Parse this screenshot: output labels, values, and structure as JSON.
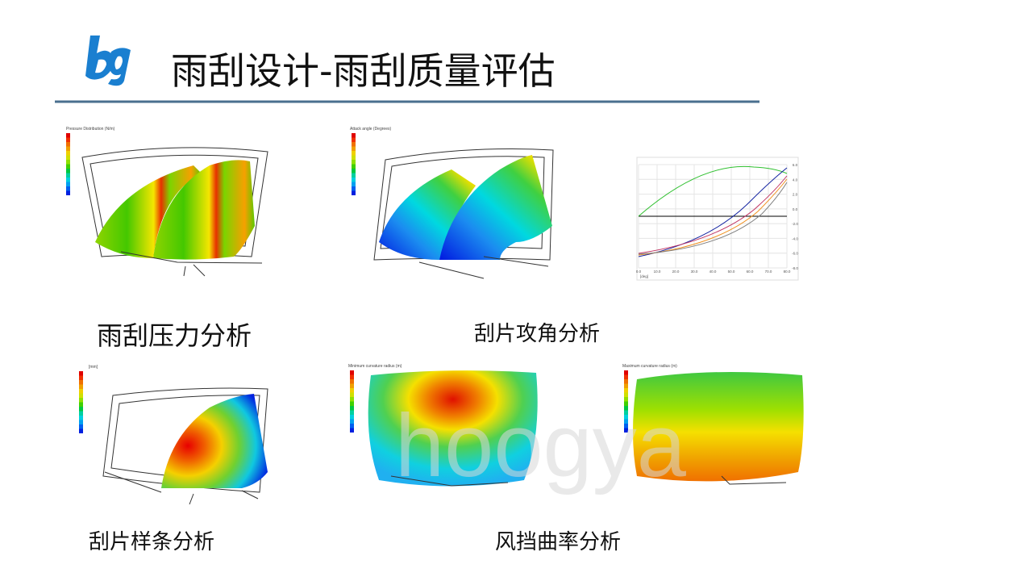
{
  "header": {
    "title": "雨刮设计-雨刮质量评估"
  },
  "panels": [
    {
      "caption": "雨刮压力分析",
      "image_title": "Pressure Distribution (N/m)"
    },
    {
      "caption": "刮片攻角分析",
      "image_title": "Attack angle (Degrees)"
    },
    {
      "caption": "刮片样条分析",
      "image_title": "[mm]"
    },
    {
      "caption": "风挡曲率分析",
      "image_title": "Minimum curvature radius (m)",
      "image_title_2": "Maximum curvature radius (m)"
    }
  ],
  "plot": {
    "x_ticks": [
      "0.0",
      "10.0",
      "20.0",
      "30.0",
      "40.0",
      "50.0",
      "60.0",
      "70.0",
      "80.0"
    ],
    "y_ticks": [
      "6.0",
      "4.0",
      "2.0",
      "0.0",
      "-2.0",
      "-4.0",
      "-6.0",
      "-8.0"
    ],
    "x_unit": "[deg]"
  },
  "watermark": "hoogya"
}
